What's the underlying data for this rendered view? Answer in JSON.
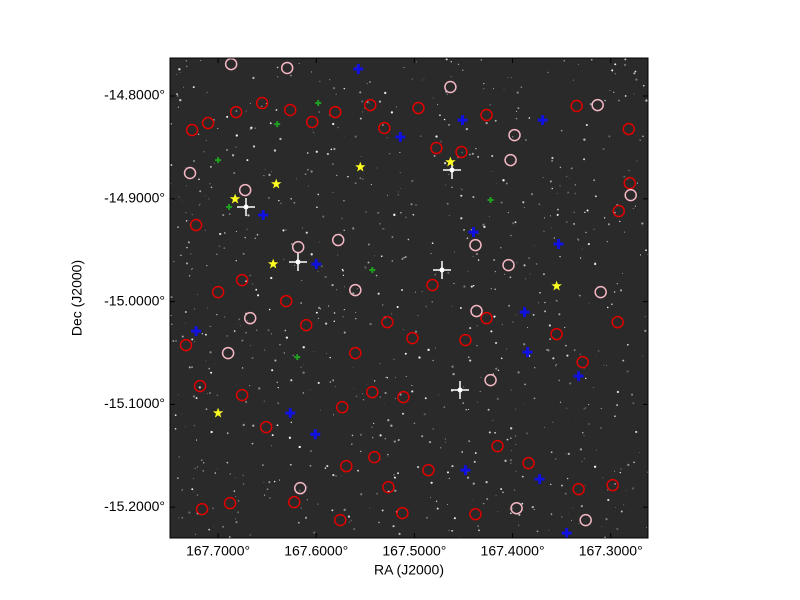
{
  "chart_data": {
    "type": "scatter",
    "x_label": "RA (J2000)",
    "y_label": "Dec (J2000)",
    "xlim": [
      167.749,
      167.262
    ],
    "ylim": [
      -15.23,
      -14.763
    ],
    "xticks": [
      {
        "value": 167.7,
        "label": "167.7000°"
      },
      {
        "value": 167.6,
        "label": "167.6000°"
      },
      {
        "value": 167.5,
        "label": "167.5000°"
      },
      {
        "value": 167.4,
        "label": "167.4000°"
      },
      {
        "value": 167.3,
        "label": "167.3000°"
      }
    ],
    "yticks": [
      {
        "value": -14.8,
        "label": "-14.8000°"
      },
      {
        "value": -14.9,
        "label": "-14.9000°"
      },
      {
        "value": -15.0,
        "label": "-15.0000°"
      },
      {
        "value": -15.1,
        "label": "-15.1000°"
      },
      {
        "value": -15.2,
        "label": "-15.2000°"
      }
    ],
    "series": [
      {
        "color": "#e00000",
        "marker": "ring",
        "x": [
          167.7265,
          167.7102,
          167.6816,
          167.6551,
          167.6265,
          167.6041,
          167.5806,
          167.5449,
          167.5306,
          167.4959,
          167.4776,
          167.452,
          167.4265,
          167.3347,
          167.2816,
          167.2806,
          167.2918,
          167.7224,
          167.6755,
          167.7,
          167.6306,
          167.6102,
          167.5602,
          167.5276,
          167.502,
          167.4816,
          167.448,
          167.4265,
          167.3551,
          167.3286,
          167.2929,
          167.7327,
          167.7184,
          167.6755,
          167.651,
          167.5735,
          167.5429,
          167.5112,
          167.5408,
          167.5694,
          167.5265,
          167.4857,
          167.4153,
          167.3837,
          167.298,
          167.7163,
          167.6878,
          167.6224,
          167.5755,
          167.5122,
          167.4378,
          167.3327
        ],
        "y": [
          -14.8331,
          -14.8263,
          -14.8156,
          -14.8068,
          -14.8136,
          -14.8253,
          -14.8156,
          -14.8088,
          -14.8311,
          -14.8117,
          -14.8506,
          -14.8545,
          -14.8185,
          -14.8097,
          -14.8321,
          -14.8847,
          -14.9119,
          -14.9255,
          -14.9791,
          -14.9908,
          -14.9995,
          -15.0229,
          -15.0501,
          -15.02,
          -15.0355,
          -14.9839,
          -15.0375,
          -15.0161,
          -15.0316,
          -15.0589,
          -15.02,
          -15.0423,
          -15.0822,
          -15.091,
          -15.1221,
          -15.1027,
          -15.0881,
          -15.0929,
          -15.1513,
          -15.1601,
          -15.1805,
          -15.164,
          -15.1406,
          -15.1572,
          -15.1786,
          -15.2019,
          -15.1961,
          -15.1951,
          -15.2126,
          -15.2058,
          -15.2068,
          -15.1825
        ]
      },
      {
        "color": "#f4b8c4",
        "marker": "ring",
        "x": [
          167.6867,
          167.6296,
          167.4633,
          167.3133,
          167.398,
          167.402,
          167.7286,
          167.6724,
          167.2796,
          167.5776,
          167.6184,
          167.4378,
          167.4041,
          167.3102,
          167.6673,
          167.5602,
          167.4224,
          167.4367,
          167.6898,
          167.3255,
          167.3959,
          167.6163
        ],
        "y": [
          -14.7689,
          -14.7727,
          -14.7912,
          -14.8088,
          -14.838,
          -14.8623,
          -14.8749,
          -14.8915,
          -14.8964,
          -14.9401,
          -14.947,
          -14.945,
          -14.9645,
          -14.9908,
          -15.0161,
          -14.9888,
          -15.0764,
          -15.0092,
          -15.0501,
          -15.2126,
          -15.201,
          -15.1815
        ]
      },
      {
        "color": "#1010e0",
        "marker": "plus",
        "x": [
          167.5571,
          167.5143,
          167.451,
          167.4398,
          167.3531,
          167.6541,
          167.6,
          167.3694,
          167.3878,
          167.3847,
          167.3327,
          167.6265,
          167.601,
          167.448,
          167.3724,
          167.3449,
          167.7224
        ],
        "y": [
          -14.7737,
          -14.8399,
          -14.8234,
          -14.9324,
          -14.944,
          -14.9158,
          -14.9635,
          -14.8234,
          -15.0102,
          -15.0491,
          -15.0725,
          -15.1085,
          -15.129,
          -15.164,
          -15.1727,
          -15.2253,
          -15.0287
        ]
      },
      {
        "color": "#20a020",
        "marker": "cross",
        "x": [
          167.7,
          167.6398,
          167.598,
          167.4224,
          167.5429,
          167.6194,
          167.6888
        ],
        "y": [
          -14.8623,
          -14.8273,
          -14.8068,
          -14.9012,
          -14.9693,
          -15.054,
          -14.908
        ]
      },
      {
        "color": "#ffff20",
        "marker": "star",
        "x": [
          167.6827,
          167.6408,
          167.5551,
          167.4633,
          167.6439,
          167.3551,
          167.7
        ],
        "y": [
          -14.9002,
          -14.8856,
          -14.8691,
          -14.8642,
          -14.9635,
          -14.9849,
          -15.1085
        ]
      }
    ]
  }
}
